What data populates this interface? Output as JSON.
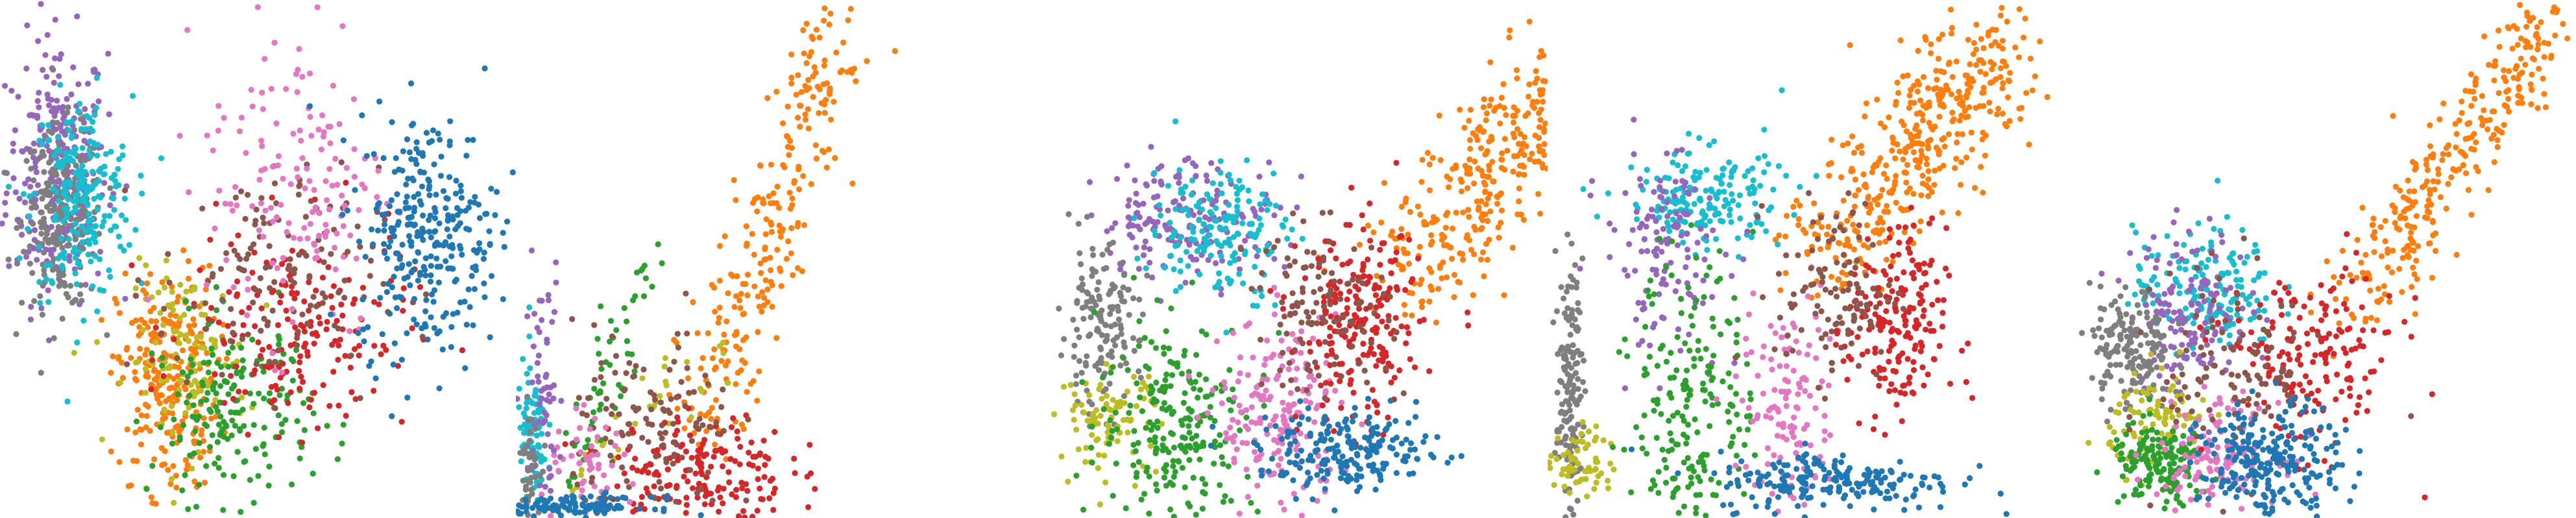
{
  "palette": {
    "blue": "#1f77b4",
    "orange": "#ff7f0e",
    "green": "#2ca02c",
    "red": "#d62728",
    "purple": "#9467bd",
    "brown": "#8c564b",
    "pink": "#e377c2",
    "gray": "#7f7f7f",
    "olive": "#bcbd22",
    "cyan": "#17becf"
  },
  "chart_data": [
    {
      "type": "scatter",
      "axes_visible": false,
      "xlim": [
        0,
        100
      ],
      "ylim": [
        0,
        100
      ],
      "clusters": [
        {
          "color": "purple",
          "cx": 10,
          "cy": 68,
          "sx": 5,
          "sy": 13,
          "count": 260
        },
        {
          "color": "gray",
          "cx": 11,
          "cy": 58,
          "sx": 4,
          "sy": 9,
          "count": 230
        },
        {
          "color": "cyan",
          "cx": 15,
          "cy": 62,
          "sx": 5,
          "sy": 10,
          "count": 220
        },
        {
          "color": "orange",
          "cx": 32,
          "cy": 26,
          "sx": 5,
          "sy": 11,
          "count": 260
        },
        {
          "color": "olive",
          "cx": 36,
          "cy": 30,
          "sx": 6,
          "sy": 9,
          "count": 110
        },
        {
          "color": "green",
          "cx": 45,
          "cy": 20,
          "sx": 8,
          "sy": 9,
          "count": 190
        },
        {
          "color": "red",
          "cx": 58,
          "cy": 36,
          "sx": 11,
          "sy": 10,
          "count": 190
        },
        {
          "color": "brown",
          "cx": 52,
          "cy": 46,
          "sx": 11,
          "sy": 11,
          "count": 140
        },
        {
          "color": "pink",
          "cx": 58,
          "cy": 66,
          "sx": 9,
          "sy": 16,
          "count": 150
        },
        {
          "color": "blue",
          "cx": 84,
          "cy": 55,
          "sx": 7,
          "sy": 12,
          "count": 300
        }
      ]
    },
    {
      "type": "scatter",
      "axes_visible": false,
      "xlim": [
        0,
        100
      ],
      "ylim": [
        0,
        100
      ],
      "clusters": [
        {
          "color": "orange",
          "line": [
            36,
            15,
            62,
            97
          ],
          "spread": 4,
          "count": 260
        },
        {
          "color": "olive",
          "line": [
            6,
            2,
            38,
            32
          ],
          "spread": 3,
          "count": 40
        },
        {
          "color": "green",
          "line": [
            8,
            2,
            26,
            52
          ],
          "spread": 2,
          "count": 60
        },
        {
          "color": "red",
          "cx": 35,
          "cy": 8,
          "sx": 9,
          "sy": 6,
          "count": 180
        },
        {
          "color": "brown",
          "cx": 26,
          "cy": 16,
          "sx": 8,
          "sy": 10,
          "count": 130
        },
        {
          "color": "pink",
          "cx": 14,
          "cy": 8,
          "sx": 5,
          "sy": 5,
          "count": 50
        },
        {
          "color": "cyan",
          "cx": 2,
          "cy": 14,
          "sx": 1.5,
          "sy": 8,
          "count": 80
        },
        {
          "color": "purple",
          "cx": 4,
          "cy": 26,
          "sx": 2,
          "sy": 12,
          "count": 60
        },
        {
          "color": "gray",
          "cx": 1.5,
          "cy": 10,
          "sx": 1,
          "sy": 5,
          "count": 40
        },
        {
          "color": "blue",
          "cx": 10,
          "cy": 1,
          "sx": 8,
          "sy": 1,
          "count": 120
        }
      ]
    },
    {
      "type": "scatter",
      "axes_visible": false,
      "xlim": [
        0,
        100
      ],
      "ylim": [
        0,
        100
      ],
      "clusters": [
        {
          "color": "orange",
          "line": [
            72,
            46,
            113,
            93
          ],
          "spread": 6,
          "count": 420
        },
        {
          "color": "purple",
          "cx": 30,
          "cy": 58,
          "sx": 9,
          "sy": 6,
          "count": 180
        },
        {
          "color": "cyan",
          "cx": 36,
          "cy": 56,
          "sx": 7,
          "sy": 7,
          "count": 160
        },
        {
          "color": "gray",
          "cx": 12,
          "cy": 36,
          "sx": 4,
          "sy": 8,
          "count": 150
        },
        {
          "color": "olive",
          "cx": 14,
          "cy": 18,
          "sx": 5,
          "sy": 5,
          "count": 90
        },
        {
          "color": "green",
          "cx": 28,
          "cy": 18,
          "sx": 8,
          "sy": 10,
          "count": 230
        },
        {
          "color": "pink",
          "cx": 48,
          "cy": 18,
          "sx": 6,
          "sy": 10,
          "count": 200
        },
        {
          "color": "red",
          "cx": 64,
          "cy": 36,
          "sx": 6,
          "sy": 10,
          "count": 220
        },
        {
          "color": "brown",
          "cx": 56,
          "cy": 40,
          "sx": 7,
          "sy": 8,
          "count": 120
        },
        {
          "color": "blue",
          "cx": 62,
          "cy": 12,
          "sx": 9,
          "sy": 4,
          "count": 210
        }
      ]
    },
    {
      "type": "scatter",
      "axes_visible": false,
      "xlim": [
        0,
        100
      ],
      "ylim": [
        0,
        100
      ],
      "clusters": [
        {
          "color": "orange",
          "line": [
            54,
            50,
            90,
            94
          ],
          "spread": 6,
          "count": 420
        },
        {
          "color": "cyan",
          "cx": 30,
          "cy": 62,
          "sx": 8,
          "sy": 5,
          "count": 170
        },
        {
          "color": "purple",
          "cx": 22,
          "cy": 52,
          "sx": 6,
          "sy": 10,
          "count": 130
        },
        {
          "color": "gray",
          "cx": 3,
          "cy": 24,
          "sx": 1.3,
          "sy": 12,
          "count": 150
        },
        {
          "color": "olive",
          "cx": 6,
          "cy": 10,
          "sx": 3,
          "sy": 4,
          "count": 60
        },
        {
          "color": "green",
          "cx": 28,
          "cy": 22,
          "sx": 6,
          "sy": 14,
          "count": 200
        },
        {
          "color": "pink",
          "cx": 47,
          "cy": 20,
          "sx": 5,
          "sy": 12,
          "count": 130
        },
        {
          "color": "red",
          "cx": 68,
          "cy": 36,
          "sx": 5,
          "sy": 10,
          "count": 190
        },
        {
          "color": "brown",
          "cx": 56,
          "cy": 44,
          "sx": 6,
          "sy": 9,
          "count": 110
        },
        {
          "color": "blue",
          "cx": 56,
          "cy": 6,
          "sx": 12,
          "sy": 3,
          "count": 200
        }
      ]
    },
    {
      "type": "scatter",
      "axes_visible": false,
      "xlim": [
        0,
        100
      ],
      "ylim": [
        0,
        100
      ],
      "clusters": [
        {
          "color": "orange",
          "line": [
            56,
            40,
            96,
            98
          ],
          "spread": 4,
          "count": 300
        },
        {
          "color": "cyan",
          "cx": 27,
          "cy": 44,
          "sx": 7,
          "sy": 6,
          "count": 170
        },
        {
          "color": "purple",
          "cx": 24,
          "cy": 40,
          "sx": 6,
          "sy": 8,
          "count": 150
        },
        {
          "color": "gray",
          "cx": 12,
          "cy": 32,
          "sx": 4,
          "sy": 6,
          "count": 160
        },
        {
          "color": "olive",
          "cx": 18,
          "cy": 18,
          "sx": 5,
          "sy": 5,
          "count": 90
        },
        {
          "color": "green",
          "cx": 18,
          "cy": 9,
          "sx": 5,
          "sy": 4,
          "count": 160
        },
        {
          "color": "pink",
          "cx": 30,
          "cy": 12,
          "sx": 6,
          "sy": 5,
          "count": 130
        },
        {
          "color": "red",
          "cx": 48,
          "cy": 30,
          "sx": 9,
          "sy": 9,
          "count": 170
        },
        {
          "color": "brown",
          "cx": 34,
          "cy": 28,
          "sx": 8,
          "sy": 10,
          "count": 120
        },
        {
          "color": "blue",
          "cx": 40,
          "cy": 9,
          "sx": 7,
          "sy": 6,
          "count": 260
        }
      ]
    }
  ]
}
